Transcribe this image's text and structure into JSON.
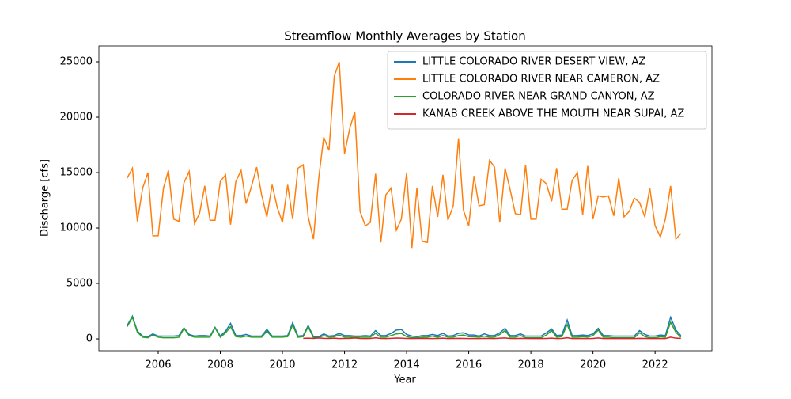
{
  "chart_data": {
    "type": "line",
    "title": "Streamflow Monthly Averages by Station",
    "x_label": "Year",
    "y_label": "Discharge [cfs]",
    "xlim": [
      2004.09,
      2023.83
    ],
    "xticks": [
      2006,
      2008,
      2010,
      2012,
      2014,
      2016,
      2018,
      2020,
      2022
    ],
    "ylim": [
      -1070,
      26430
    ],
    "yticks": [
      0,
      5000,
      10000,
      15000,
      20000,
      25000
    ],
    "legend": "upper right",
    "x": [
      2005,
      2005.17,
      2005.33,
      2005.5,
      2005.67,
      2005.83,
      2006,
      2006.17,
      2006.33,
      2006.5,
      2006.67,
      2006.83,
      2007,
      2007.17,
      2007.33,
      2007.5,
      2007.67,
      2007.83,
      2008,
      2008.17,
      2008.33,
      2008.5,
      2008.67,
      2008.83,
      2009,
      2009.17,
      2009.33,
      2009.5,
      2009.67,
      2009.83,
      2010,
      2010.17,
      2010.33,
      2010.5,
      2010.67,
      2010.83,
      2011,
      2011.17,
      2011.33,
      2011.5,
      2011.67,
      2011.83,
      2012,
      2012.17,
      2012.33,
      2012.5,
      2012.67,
      2012.83,
      2013,
      2013.17,
      2013.33,
      2013.5,
      2013.67,
      2013.83,
      2014,
      2014.17,
      2014.33,
      2014.5,
      2014.67,
      2014.83,
      2015,
      2015.17,
      2015.33,
      2015.5,
      2015.67,
      2015.83,
      2016,
      2016.17,
      2016.33,
      2016.5,
      2016.67,
      2016.83,
      2017,
      2017.17,
      2017.33,
      2017.5,
      2017.67,
      2017.83,
      2018,
      2018.17,
      2018.33,
      2018.5,
      2018.67,
      2018.83,
      2019,
      2019.17,
      2019.33,
      2019.5,
      2019.67,
      2019.83,
      2020,
      2020.17,
      2020.33,
      2020.5,
      2020.67,
      2020.83,
      2021,
      2021.17,
      2021.33,
      2021.5,
      2021.67,
      2021.83,
      2022,
      2022.17,
      2022.33,
      2022.5,
      2022.67,
      2022.83
    ],
    "series": [
      {
        "name": "LITTLE COLORADO RIVER DESERT VIEW, AZ",
        "color": "#1f77b4",
        "values": [
          1200,
          2050,
          700,
          250,
          200,
          450,
          250,
          250,
          250,
          250,
          300,
          1000,
          400,
          250,
          300,
          300,
          250,
          1050,
          250,
          700,
          1400,
          300,
          300,
          400,
          250,
          250,
          250,
          850,
          250,
          250,
          250,
          300,
          1450,
          250,
          300,
          1200,
          200,
          200,
          450,
          250,
          300,
          500,
          300,
          300,
          250,
          250,
          300,
          250,
          750,
          300,
          300,
          500,
          800,
          850,
          400,
          250,
          200,
          300,
          300,
          400,
          300,
          500,
          250,
          300,
          500,
          550,
          350,
          350,
          250,
          450,
          300,
          300,
          550,
          950,
          300,
          300,
          450,
          250,
          250,
          250,
          250,
          550,
          900,
          300,
          350,
          1700,
          300,
          300,
          350,
          300,
          450,
          950,
          300,
          300,
          250,
          250,
          250,
          250,
          250,
          750,
          400,
          250,
          250,
          350,
          300,
          1950,
          800,
          300
        ]
      },
      {
        "name": "LITTLE COLORADO RIVER NEAR CAMERON, AZ",
        "color": "#ff7f0e",
        "values": [
          14500,
          15400,
          10600,
          13600,
          15000,
          9300,
          9300,
          13600,
          15200,
          10800,
          10600,
          14100,
          15100,
          10400,
          11300,
          13800,
          10700,
          10700,
          14200,
          14800,
          10300,
          14200,
          15200,
          12200,
          13700,
          15500,
          13000,
          11000,
          13900,
          11900,
          10500,
          13900,
          10800,
          15400,
          15700,
          11000,
          9000,
          14500,
          18200,
          17000,
          23700,
          25000,
          16700,
          19000,
          20500,
          11500,
          10200,
          10500,
          14900,
          8700,
          13000,
          13600,
          9800,
          10800,
          15000,
          8200,
          13600,
          8800,
          8700,
          13800,
          11000,
          14800,
          10700,
          12000,
          18100,
          11600,
          10200,
          14700,
          12000,
          12100,
          16100,
          15500,
          10500,
          15400,
          13500,
          11300,
          11200,
          15700,
          10800,
          10800,
          14400,
          14000,
          12400,
          15400,
          11700,
          11700,
          14300,
          15000,
          11200,
          15600,
          10800,
          12900,
          12800,
          12900,
          11100,
          14500,
          11000,
          11500,
          12700,
          12300,
          11000,
          13600,
          10200,
          9200,
          10800,
          13800,
          9000,
          9500
        ]
      },
      {
        "name": "COLORADO RIVER NEAR GRAND CANYON, AZ",
        "color": "#2ca02c",
        "values": [
          1100,
          1950,
          600,
          150,
          100,
          350,
          150,
          100,
          100,
          100,
          150,
          950,
          300,
          150,
          150,
          150,
          150,
          1000,
          150,
          550,
          1100,
          200,
          150,
          250,
          150,
          150,
          150,
          700,
          150,
          150,
          150,
          200,
          1250,
          150,
          200,
          1100,
          100,
          100,
          300,
          150,
          200,
          350,
          150,
          150,
          150,
          150,
          150,
          150,
          500,
          150,
          150,
          300,
          450,
          500,
          200,
          100,
          100,
          150,
          150,
          250,
          150,
          300,
          150,
          150,
          300,
          350,
          200,
          200,
          150,
          250,
          150,
          150,
          400,
          750,
          150,
          150,
          300,
          100,
          100,
          100,
          100,
          350,
          750,
          150,
          200,
          1300,
          150,
          150,
          200,
          150,
          300,
          800,
          150,
          150,
          100,
          100,
          100,
          100,
          100,
          550,
          200,
          100,
          100,
          200,
          150,
          1500,
          600,
          150
        ]
      },
      {
        "name": "KANAB CREEK ABOVE THE MOUTH NEAR SUPAI, AZ",
        "color": "#d62728",
        "values": [
          null,
          null,
          null,
          null,
          null,
          null,
          null,
          null,
          null,
          null,
          null,
          null,
          null,
          null,
          null,
          null,
          null,
          null,
          null,
          null,
          null,
          null,
          null,
          null,
          null,
          null,
          null,
          null,
          null,
          null,
          null,
          null,
          null,
          null,
          50,
          60,
          40,
          80,
          50,
          40,
          60,
          30,
          40,
          50,
          80,
          40,
          30,
          40,
          90,
          40,
          30,
          50,
          70,
          60,
          40,
          30,
          40,
          50,
          40,
          30,
          40,
          60,
          30,
          40,
          50,
          40,
          30,
          40,
          30,
          50,
          40,
          30,
          60,
          80,
          40,
          30,
          50,
          40,
          30,
          30,
          30,
          40,
          60,
          30,
          40,
          100,
          30,
          30,
          40,
          30,
          40,
          80,
          30,
          30,
          30,
          30,
          30,
          30,
          30,
          50,
          40,
          30,
          30,
          40,
          30,
          150,
          60,
          50
        ]
      }
    ]
  }
}
